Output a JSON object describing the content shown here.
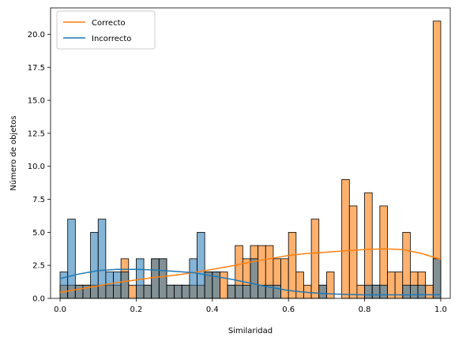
{
  "chart_data": {
    "type": "bar",
    "xlabel": "Similaridad",
    "ylabel": "Número de objetos",
    "xlim": [
      -0.025,
      1.025
    ],
    "ylim": [
      0,
      22
    ],
    "bin_width": 0.02,
    "bin_starts": [
      0.0,
      0.02,
      0.04,
      0.06,
      0.08,
      0.1,
      0.12,
      0.14,
      0.16,
      0.18,
      0.2,
      0.22,
      0.24,
      0.26,
      0.28,
      0.3,
      0.32,
      0.34,
      0.36,
      0.38,
      0.4,
      0.42,
      0.44,
      0.46,
      0.48,
      0.5,
      0.52,
      0.54,
      0.56,
      0.58,
      0.6,
      0.62,
      0.64,
      0.66,
      0.68,
      0.7,
      0.72,
      0.74,
      0.76,
      0.78,
      0.8,
      0.82,
      0.84,
      0.86,
      0.88,
      0.9,
      0.92,
      0.94,
      0.96,
      0.98
    ],
    "x_ticks": [
      0.0,
      0.2,
      0.4,
      0.6,
      0.8,
      1.0
    ],
    "x_tick_labels": [
      "0.0",
      "0.2",
      "0.4",
      "0.6",
      "0.8",
      "1.0"
    ],
    "y_ticks": [
      0,
      2.5,
      5,
      7.5,
      10,
      12.5,
      15,
      17.5,
      20
    ],
    "y_tick_labels": [
      "0.0",
      "2.5",
      "5.0",
      "7.5",
      "10.0",
      "12.5",
      "15.0",
      "17.5",
      "20.0"
    ],
    "series": [
      {
        "name": "Correcto",
        "color": "#ff7f0e",
        "values": [
          1,
          1,
          1,
          1,
          1,
          1,
          1,
          1,
          3,
          1,
          1,
          1,
          3,
          3,
          1,
          1,
          1,
          1,
          1,
          2,
          2,
          2,
          1,
          4,
          3,
          4,
          4,
          4,
          3,
          3,
          5,
          2,
          1,
          6,
          1,
          2,
          0,
          9,
          7,
          1,
          8,
          1,
          7,
          2,
          2,
          5,
          2,
          2,
          1,
          21
        ],
        "kde": [
          [
            0.0,
            0.45
          ],
          [
            0.05,
            0.7
          ],
          [
            0.1,
            0.95
          ],
          [
            0.15,
            1.2
          ],
          [
            0.2,
            1.4
          ],
          [
            0.25,
            1.6
          ],
          [
            0.3,
            1.75
          ],
          [
            0.35,
            1.95
          ],
          [
            0.4,
            2.2
          ],
          [
            0.45,
            2.45
          ],
          [
            0.5,
            2.75
          ],
          [
            0.55,
            3.0
          ],
          [
            0.6,
            3.25
          ],
          [
            0.65,
            3.4
          ],
          [
            0.7,
            3.5
          ],
          [
            0.75,
            3.6
          ],
          [
            0.8,
            3.7
          ],
          [
            0.85,
            3.75
          ],
          [
            0.9,
            3.7
          ],
          [
            0.95,
            3.4
          ],
          [
            1.0,
            2.95
          ]
        ]
      },
      {
        "name": "Incorrecto",
        "color": "#1f77b4",
        "values": [
          2,
          6,
          1,
          1,
          5,
          6,
          2,
          2,
          2,
          0,
          3,
          1,
          3,
          3,
          1,
          1,
          1,
          3,
          5,
          2,
          2,
          0,
          1,
          1,
          1,
          3,
          1,
          1,
          1,
          0,
          0,
          0,
          0,
          0,
          1,
          0,
          0,
          0,
          0,
          0,
          1,
          1,
          1,
          0,
          0,
          1,
          1,
          1,
          0,
          3
        ],
        "kde": [
          [
            0.0,
            1.5
          ],
          [
            0.05,
            1.85
          ],
          [
            0.1,
            2.1
          ],
          [
            0.15,
            2.2
          ],
          [
            0.2,
            2.2
          ],
          [
            0.25,
            2.15
          ],
          [
            0.3,
            2.05
          ],
          [
            0.35,
            1.95
          ],
          [
            0.4,
            1.7
          ],
          [
            0.45,
            1.45
          ],
          [
            0.5,
            1.15
          ],
          [
            0.55,
            0.85
          ],
          [
            0.6,
            0.6
          ],
          [
            0.65,
            0.45
          ],
          [
            0.7,
            0.35
          ],
          [
            0.75,
            0.3
          ],
          [
            0.8,
            0.27
          ],
          [
            0.85,
            0.27
          ],
          [
            0.9,
            0.27
          ],
          [
            0.95,
            0.28
          ],
          [
            1.0,
            0.28
          ]
        ]
      }
    ],
    "legend": {
      "placement": "upper left",
      "entries": [
        "Correcto",
        "Incorrecto"
      ]
    }
  }
}
